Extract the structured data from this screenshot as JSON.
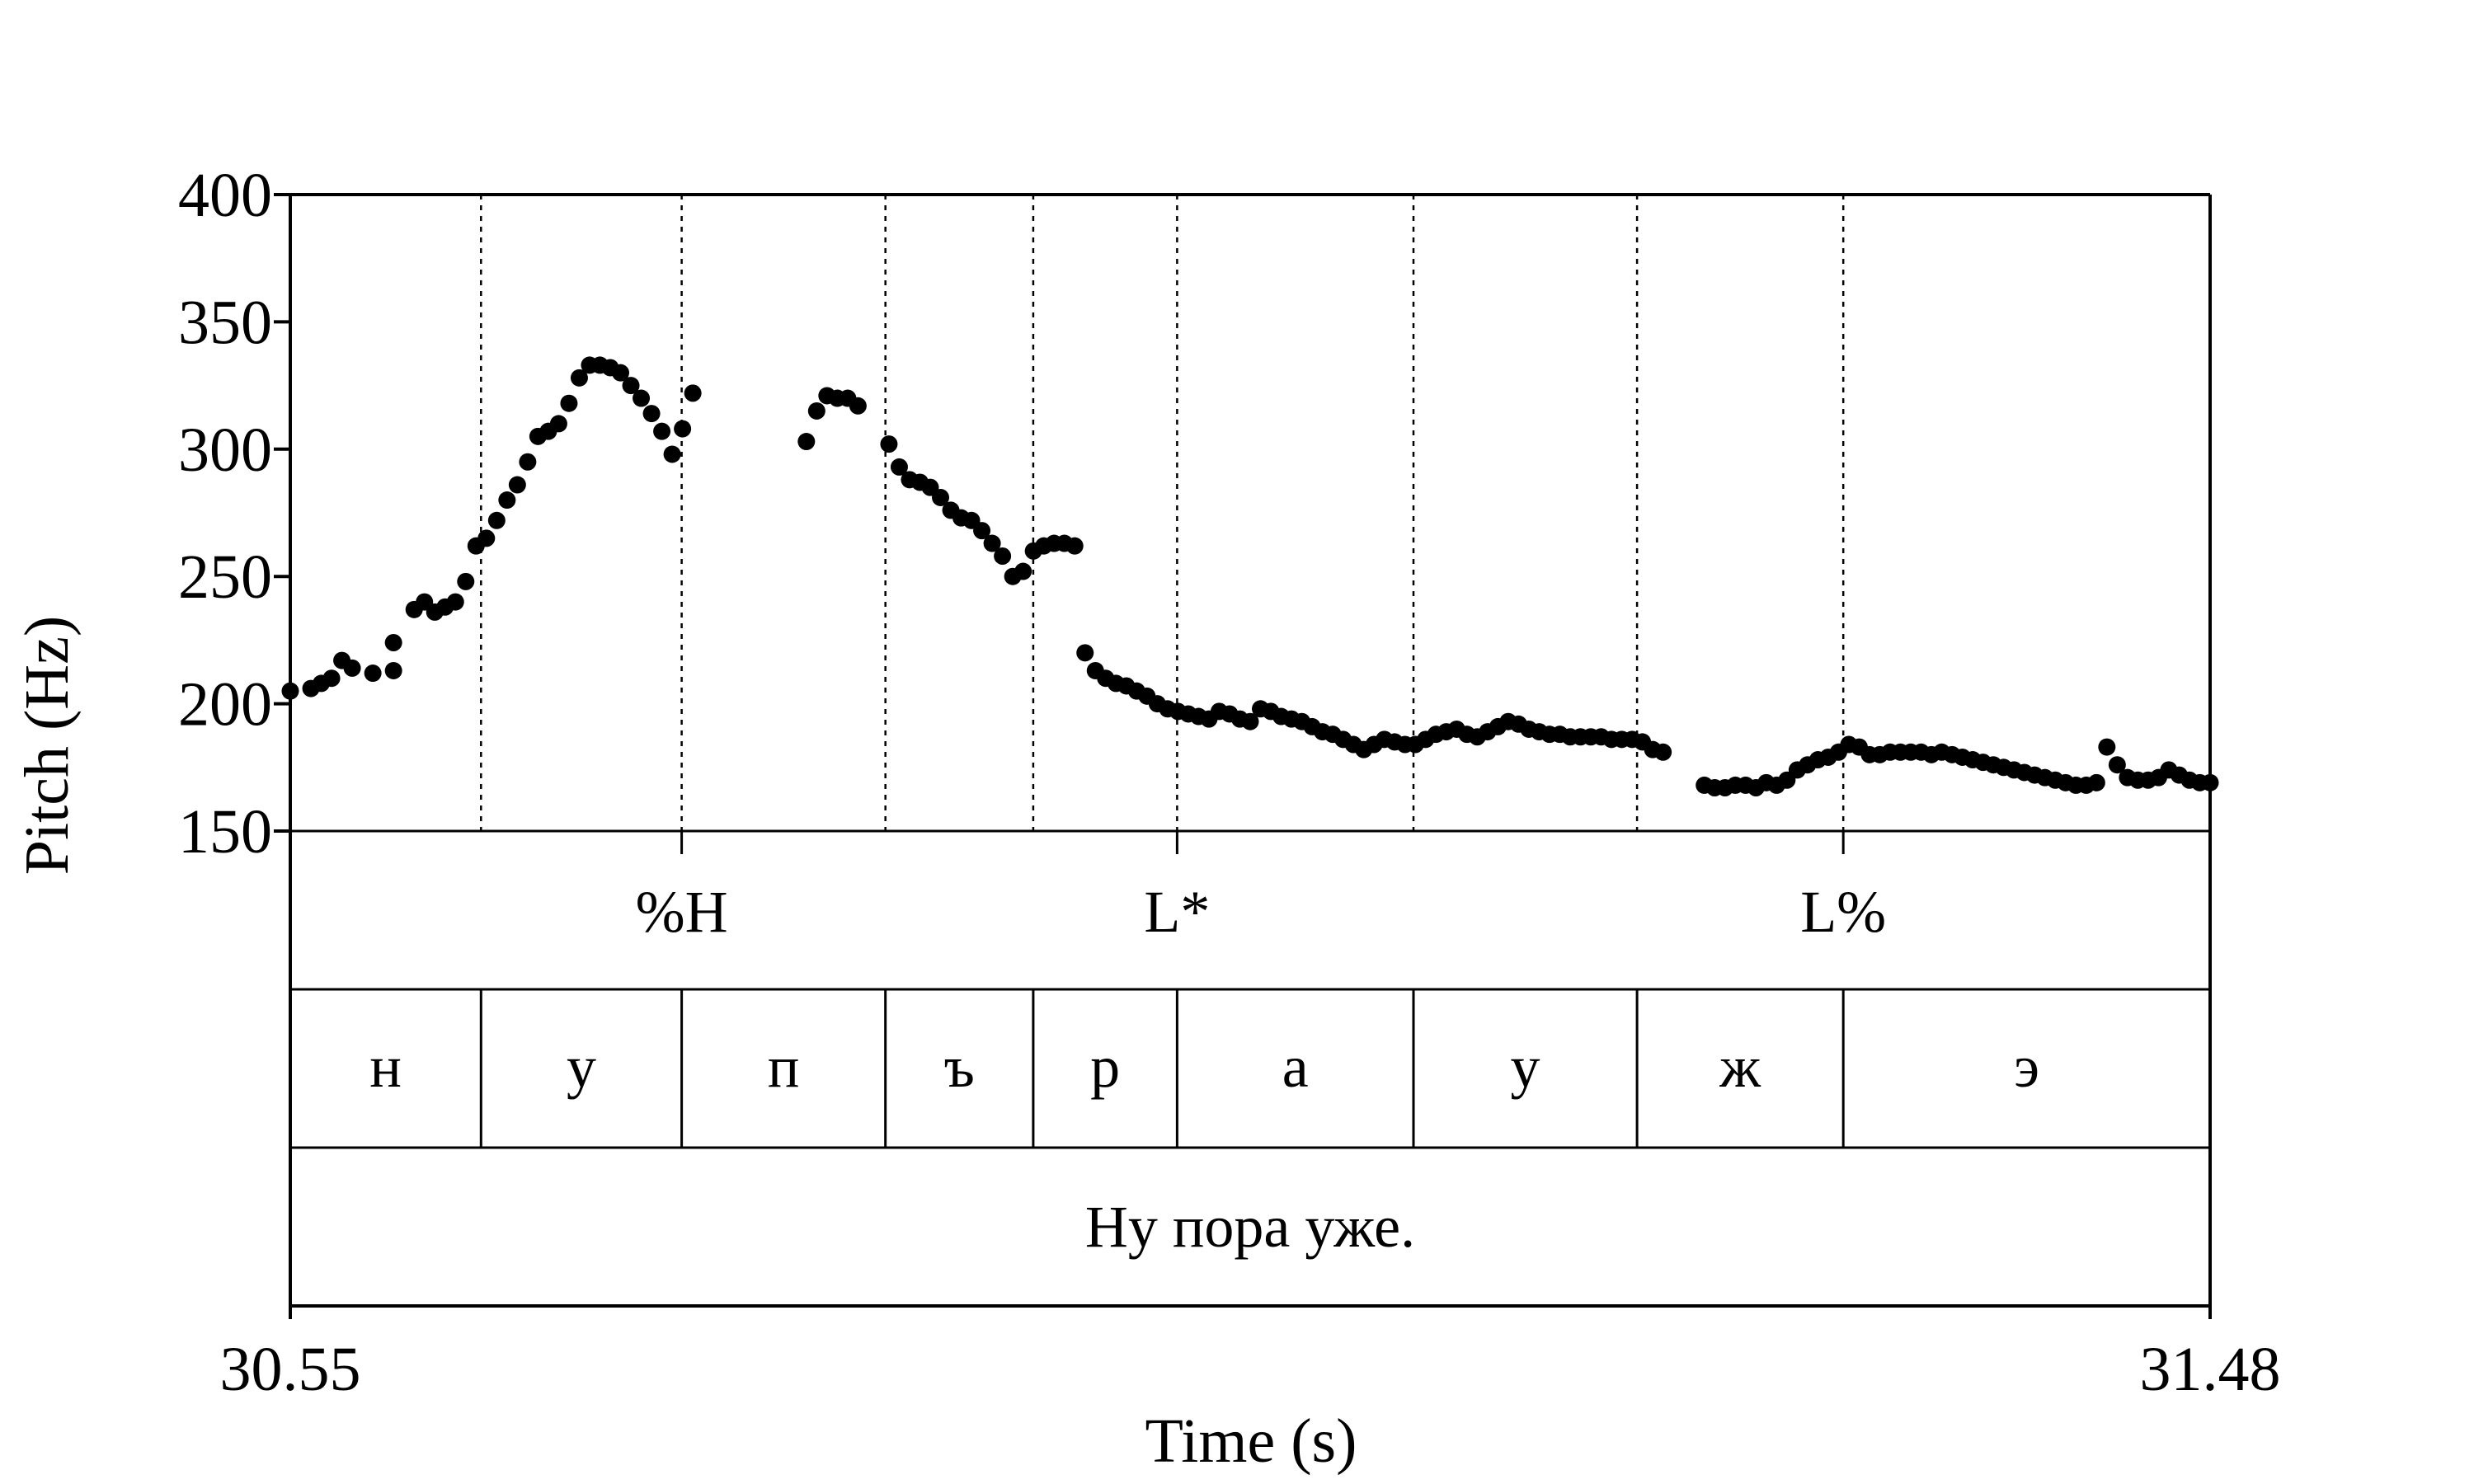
{
  "chart_data": {
    "type": "scatter",
    "title": "",
    "xlabel": "Time (s)",
    "ylabel": "Pitch (Hz)",
    "xlim": [
      30.55,
      31.48
    ],
    "ylim": [
      150,
      400
    ],
    "x_tick_labels": [
      "30.55",
      "31.48"
    ],
    "y_ticks": [
      150,
      200,
      250,
      300,
      350,
      400
    ],
    "y_tick_labels": [
      "150",
      "200",
      "250",
      "300",
      "350",
      "400"
    ],
    "grid": "dotted vertical lines at segment boundaries",
    "marker_color": "#000000",
    "segment_boundaries": [
      30.6424,
      30.7396,
      30.8383,
      30.9099,
      30.9796,
      31.0941,
      31.2024,
      31.3023
    ],
    "tones": [
      {
        "label": "%H",
        "time": 30.7396
      },
      {
        "label": "L*",
        "time": 30.9796
      },
      {
        "label": "L%",
        "time": 31.3023
      }
    ],
    "segments": [
      {
        "label": "н",
        "start": 30.55,
        "end": 30.6424
      },
      {
        "label": "у",
        "start": 30.6424,
        "end": 30.7396
      },
      {
        "label": "п",
        "start": 30.7396,
        "end": 30.8383
      },
      {
        "label": "ъ",
        "start": 30.8383,
        "end": 30.9099
      },
      {
        "label": "р",
        "start": 30.9099,
        "end": 30.9796
      },
      {
        "label": "а",
        "start": 30.9796,
        "end": 31.0941
      },
      {
        "label": "у",
        "start": 31.0941,
        "end": 31.2024
      },
      {
        "label": "ж",
        "start": 31.2024,
        "end": 31.3023
      },
      {
        "label": "э",
        "start": 31.3023,
        "end": 31.48
      }
    ],
    "sentence": "Ну пора уже.",
    "contours": [
      {
        "x": [
          30.55,
          30.56,
          30.565,
          30.57,
          30.575,
          30.58,
          30.59,
          30.6,
          30.6,
          30.61,
          30.615,
          30.62,
          30.625,
          30.63,
          30.635,
          30.64,
          30.645,
          30.65,
          30.655,
          30.66,
          30.665,
          30.67,
          30.675,
          30.68,
          30.685,
          30.69,
          30.695,
          30.7,
          30.705,
          30.71,
          30.715,
          30.72,
          30.725,
          30.73,
          30.735,
          30.74,
          30.745
        ],
        "y": [
          205,
          206,
          208,
          210,
          217,
          214,
          212,
          213,
          224,
          237,
          240,
          236,
          238,
          240,
          248,
          262,
          265,
          272,
          280,
          286,
          295,
          305,
          307,
          310,
          318,
          328,
          333,
          333,
          332,
          330,
          325,
          320,
          314,
          307,
          298,
          308,
          322
        ]
      },
      {
        "x": [
          30.8,
          30.805,
          30.81,
          30.815,
          30.82,
          30.825
        ],
        "y": [
          303,
          315,
          321,
          320,
          320,
          317
        ]
      },
      {
        "x": [
          30.84,
          30.845,
          30.85,
          30.855,
          30.86,
          30.865,
          30.87,
          30.875,
          30.88,
          30.885,
          30.89,
          30.895,
          30.9,
          30.905,
          30.91
        ],
        "y": [
          302,
          293,
          288,
          287,
          285,
          281,
          276,
          273,
          272,
          268,
          263,
          258,
          250,
          252,
          260
        ]
      },
      {
        "x": [
          30.915,
          30.92,
          30.925,
          30.93,
          30.935,
          30.94,
          30.945,
          30.95,
          30.955,
          30.96,
          30.965,
          30.97,
          30.975,
          30.98,
          30.985,
          30.99,
          30.995,
          31.0,
          31.005,
          31.01,
          31.015,
          31.02,
          31.025,
          31.03,
          31.035,
          31.04,
          31.045,
          31.05,
          31.055,
          31.06,
          31.065,
          31.07,
          31.075,
          31.08,
          31.085,
          31.09,
          31.095,
          31.1,
          31.105,
          31.11,
          31.115,
          31.12,
          31.125,
          31.13,
          31.135,
          31.14,
          31.145,
          31.15,
          31.155,
          31.16,
          31.165,
          31.17,
          31.175,
          31.18,
          31.185,
          31.19,
          31.195,
          31.2,
          31.205,
          31.21,
          31.215
        ],
        "y": [
          262,
          263,
          263,
          262,
          220,
          213,
          210,
          208,
          207,
          205,
          203,
          200,
          198,
          197,
          196,
          195,
          194,
          197,
          196,
          194,
          193,
          198,
          197,
          195,
          194,
          193,
          191,
          189,
          188,
          186,
          184,
          182,
          184,
          186,
          185,
          184,
          184,
          186,
          188,
          189,
          190,
          188,
          187,
          189,
          191,
          193,
          192,
          190,
          189,
          188,
          188,
          187,
          187,
          187,
          187,
          186,
          186,
          186,
          185,
          182,
          181
        ]
      },
      {
        "x": [
          31.235,
          31.24,
          31.245,
          31.25,
          31.255,
          31.26,
          31.265,
          31.27,
          31.275,
          31.28,
          31.285,
          31.29,
          31.295,
          31.3,
          31.305,
          31.31,
          31.315,
          31.32,
          31.325,
          31.33,
          31.335,
          31.34,
          31.345,
          31.35,
          31.355,
          31.36,
          31.365,
          31.37,
          31.375,
          31.38,
          31.385,
          31.39,
          31.395,
          31.4,
          31.405,
          31.41,
          31.415,
          31.42,
          31.425,
          31.43,
          31.435,
          31.44,
          31.445,
          31.45,
          31.455,
          31.46,
          31.465,
          31.47,
          31.475,
          31.48
        ],
        "y": [
          168,
          167,
          167,
          168,
          168,
          167,
          169,
          168,
          170,
          174,
          176,
          178,
          179,
          181,
          184,
          183,
          180,
          180,
          181,
          181,
          181,
          181,
          180,
          181,
          180,
          179,
          178,
          177,
          176,
          175,
          174,
          173,
          172,
          171,
          170,
          169,
          168,
          168,
          169,
          183,
          176,
          171,
          170,
          170,
          171,
          174,
          172,
          170,
          169,
          169
        ]
      }
    ]
  }
}
